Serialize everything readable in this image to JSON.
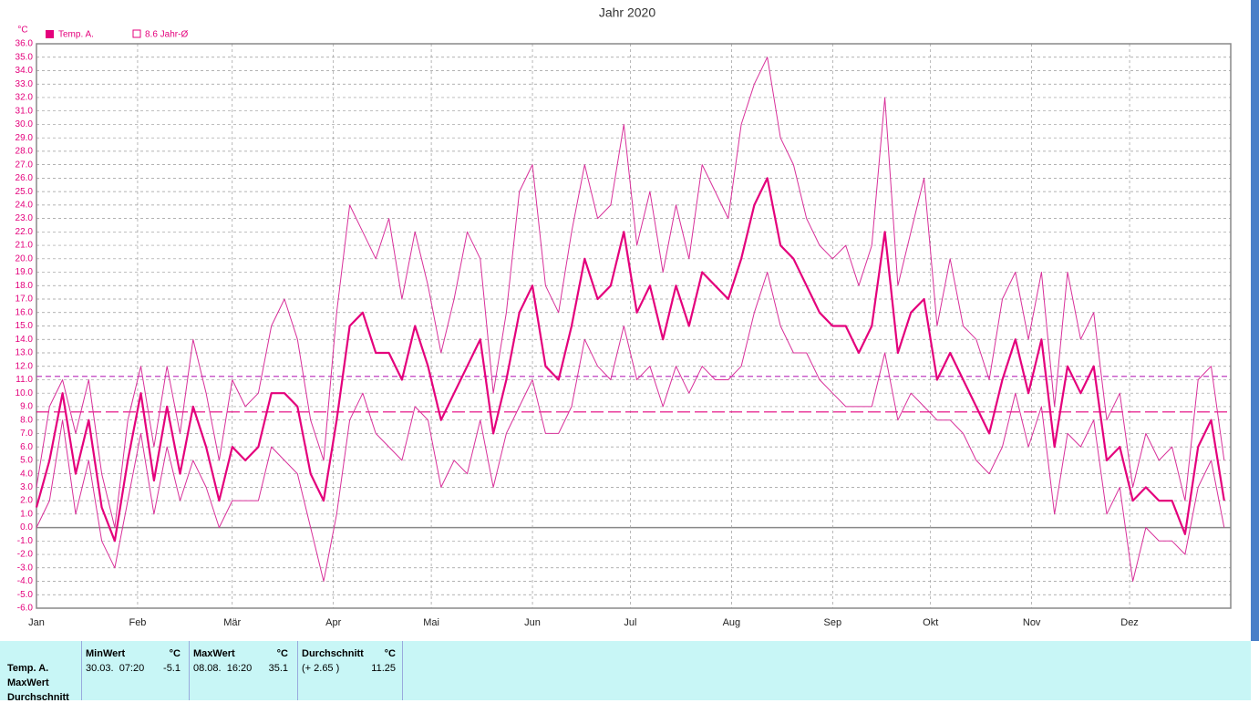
{
  "chart_data": {
    "type": "line",
    "title": "Jahr 2020",
    "y_unit": "°C",
    "xlim": [
      0,
      366
    ],
    "xticks": [
      {
        "value": 0,
        "label": "Jan"
      },
      {
        "value": 31,
        "label": "Feb"
      },
      {
        "value": 60,
        "label": "Mär"
      },
      {
        "value": 91,
        "label": "Apr"
      },
      {
        "value": 121,
        "label": "Mai"
      },
      {
        "value": 152,
        "label": "Jun"
      },
      {
        "value": 182,
        "label": "Jul"
      },
      {
        "value": 213,
        "label": "Aug"
      },
      {
        "value": 244,
        "label": "Sep"
      },
      {
        "value": 274,
        "label": "Okt"
      },
      {
        "value": 305,
        "label": "Nov"
      },
      {
        "value": 335,
        "label": "Dez"
      }
    ],
    "ylim": [
      -6,
      36
    ],
    "yticks": [
      {
        "value": -6,
        "label": "-6.0"
      },
      {
        "value": -5,
        "label": "-5.0"
      },
      {
        "value": -4,
        "label": "-4.0"
      },
      {
        "value": -3,
        "label": "-3.0"
      },
      {
        "value": -2,
        "label": "-2.0"
      },
      {
        "value": -1,
        "label": "-1.0"
      },
      {
        "value": 0,
        "label": "0.0"
      },
      {
        "value": 1,
        "label": "1.0"
      },
      {
        "value": 2,
        "label": "2.0"
      },
      {
        "value": 3,
        "label": "3.0"
      },
      {
        "value": 4,
        "label": "4.0"
      },
      {
        "value": 5,
        "label": "5.0"
      },
      {
        "value": 6,
        "label": "6.0"
      },
      {
        "value": 7,
        "label": "7.0"
      },
      {
        "value": 8,
        "label": "8.0"
      },
      {
        "value": 9,
        "label": "9.0"
      },
      {
        "value": 10,
        "label": "10.0"
      },
      {
        "value": 11,
        "label": "11.0"
      },
      {
        "value": 12,
        "label": "12.0"
      },
      {
        "value": 13,
        "label": "13.0"
      },
      {
        "value": 14,
        "label": "14.0"
      },
      {
        "value": 15,
        "label": "15.0"
      },
      {
        "value": 16,
        "label": "16.0"
      },
      {
        "value": 17,
        "label": "17.0"
      },
      {
        "value": 18,
        "label": "18.0"
      },
      {
        "value": 19,
        "label": "19.0"
      },
      {
        "value": 20,
        "label": "20.0"
      },
      {
        "value": 21,
        "label": "21.0"
      },
      {
        "value": 22,
        "label": "22.0"
      },
      {
        "value": 23,
        "label": "23.0"
      },
      {
        "value": 24,
        "label": "24.0"
      },
      {
        "value": 25,
        "label": "25.0"
      },
      {
        "value": 26,
        "label": "26.0"
      },
      {
        "value": 27,
        "label": "27.0"
      },
      {
        "value": 28,
        "label": "28.0"
      },
      {
        "value": 29,
        "label": "29.0"
      },
      {
        "value": 30,
        "label": "30.0"
      },
      {
        "value": 31,
        "label": "31.0"
      },
      {
        "value": 32,
        "label": "32.0"
      },
      {
        "value": 33,
        "label": "33.0"
      },
      {
        "value": 34,
        "label": "34.0"
      },
      {
        "value": 35,
        "label": "35.0"
      },
      {
        "value": 36,
        "label": "36.0"
      }
    ],
    "grid": true,
    "x": [
      0,
      4,
      8,
      12,
      16,
      20,
      24,
      28,
      32,
      36,
      40,
      44,
      48,
      52,
      56,
      60,
      64,
      68,
      72,
      76,
      80,
      84,
      88,
      92,
      96,
      100,
      104,
      108,
      112,
      116,
      120,
      124,
      128,
      132,
      136,
      140,
      144,
      148,
      152,
      156,
      160,
      164,
      168,
      172,
      176,
      180,
      184,
      188,
      192,
      196,
      200,
      204,
      208,
      212,
      216,
      220,
      224,
      228,
      232,
      236,
      240,
      244,
      248,
      252,
      256,
      260,
      264,
      268,
      272,
      276,
      280,
      284,
      288,
      292,
      296,
      300,
      304,
      308,
      312,
      316,
      320,
      324,
      328,
      332,
      336,
      340,
      344,
      348,
      352,
      356,
      360,
      364
    ],
    "series": [
      {
        "name": "Temp. A.",
        "color": "#e4007c",
        "width": 2.2,
        "values": [
          1.5,
          5,
          10,
          4,
          8,
          1.5,
          -1,
          5,
          10,
          3.5,
          9,
          4,
          9,
          6,
          2,
          6,
          5,
          6,
          10,
          10,
          9,
          4,
          2,
          8,
          15,
          16,
          13,
          13,
          11,
          15,
          12,
          8,
          10,
          12,
          14,
          7,
          11,
          16,
          18,
          12,
          11,
          15,
          20,
          17,
          18,
          22,
          16,
          18,
          14,
          18,
          15,
          19,
          18,
          17,
          20,
          24,
          26,
          21,
          20,
          18,
          16,
          15,
          15,
          13,
          15,
          22,
          13,
          16,
          17,
          11,
          13,
          11,
          9,
          7,
          11,
          14,
          10,
          14,
          6,
          12,
          10,
          12,
          5,
          6,
          2,
          3,
          2,
          2,
          -0.5,
          6,
          8,
          2
        ]
      },
      {
        "color": "#d8309a",
        "width": 1,
        "values": [
          3,
          9,
          11,
          7,
          11,
          4,
          0,
          8,
          12,
          6,
          12,
          7,
          14,
          10,
          5,
          11,
          9,
          10,
          15,
          17,
          14,
          8,
          5,
          16,
          24,
          22,
          20,
          23,
          17,
          22,
          18,
          13,
          17,
          22,
          20,
          10,
          16,
          25,
          27,
          18,
          16,
          22,
          27,
          23,
          24,
          30,
          21,
          25,
          19,
          24,
          20,
          27,
          25,
          23,
          30,
          33,
          35,
          29,
          27,
          23,
          21,
          20,
          21,
          18,
          21,
          32,
          18,
          22,
          26,
          15,
          20,
          15,
          14,
          11,
          17,
          19,
          14,
          19,
          9,
          19,
          14,
          16,
          8,
          10,
          3,
          7,
          5,
          6,
          2,
          11,
          12,
          5
        ]
      },
      {
        "color": "#d8309a",
        "width": 1,
        "values": [
          0,
          2,
          8,
          1,
          5,
          -1,
          -3,
          2,
          7,
          1,
          6,
          2,
          5,
          3,
          0,
          2,
          2,
          2,
          6,
          5,
          4,
          0,
          -4,
          1,
          8,
          10,
          7,
          6,
          5,
          9,
          8,
          3,
          5,
          4,
          8,
          3,
          7,
          9,
          11,
          7,
          7,
          9,
          14,
          12,
          11,
          15,
          11,
          12,
          9,
          12,
          10,
          12,
          11,
          11,
          12,
          16,
          19,
          15,
          13,
          13,
          11,
          10,
          9,
          9,
          9,
          13,
          8,
          10,
          9,
          8,
          8,
          7,
          5,
          4,
          6,
          10,
          6,
          9,
          1,
          7,
          6,
          8,
          1,
          3,
          -4,
          0,
          -1,
          -1,
          -2,
          3,
          5,
          0
        ]
      }
    ],
    "hlines": [
      {
        "name": "8.6 Jahr-Ø",
        "value": 8.6,
        "color": "#e4007c",
        "dash": "14 5"
      },
      {
        "value": 11.25,
        "color": "#c040c0",
        "dash": "6 4"
      }
    ]
  },
  "stats_table": {
    "row_labels": [
      "Temp. A.",
      "MaxWert",
      "Durchschnitt"
    ],
    "columns": [
      {
        "header": "MinWert",
        "unit": "°C",
        "when": "30.03.  07:20",
        "value": "-5.1"
      },
      {
        "header": "MaxWert",
        "unit": "°C",
        "when": "08.08.  16:20",
        "value": "35.1"
      },
      {
        "header": "Durchschnitt",
        "unit": "°C",
        "when": "(+ 2.65 )",
        "value": "11.25"
      }
    ]
  }
}
